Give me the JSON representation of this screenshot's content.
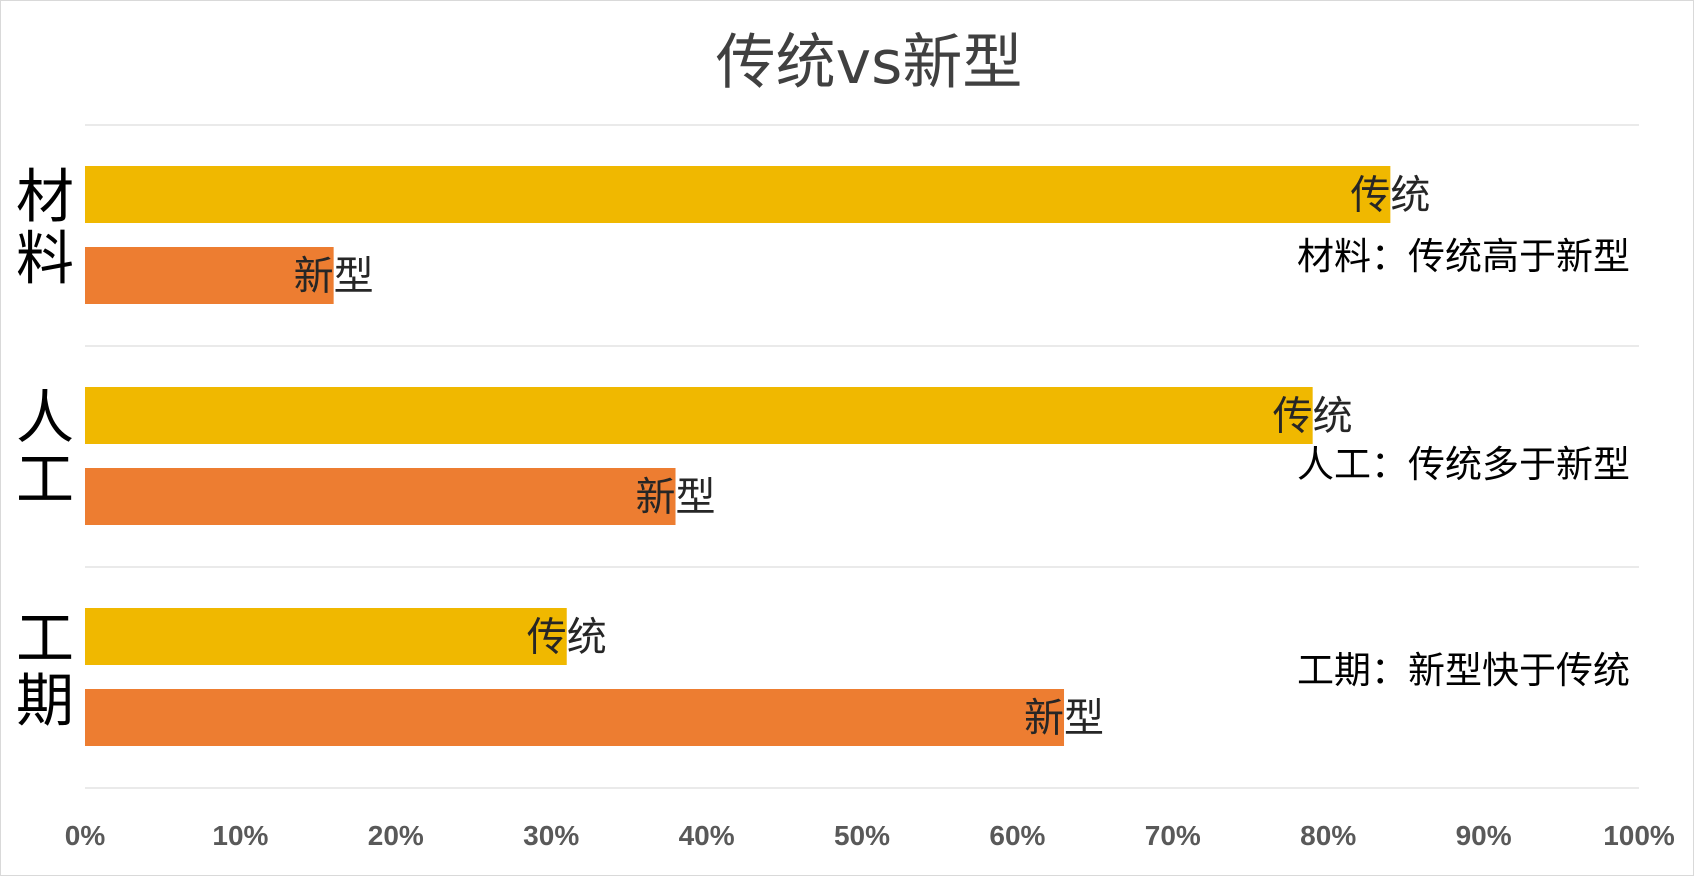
{
  "chart_data": {
    "type": "bar",
    "orientation": "horizontal",
    "title": "传统vs新型",
    "categories": [
      "材料",
      "人工",
      "工期"
    ],
    "series": [
      {
        "name": "传统",
        "values": [
          84,
          79,
          31
        ],
        "color": "#f0b800"
      },
      {
        "name": "新型",
        "values": [
          16,
          38,
          63
        ],
        "color": "#ed7d31"
      }
    ],
    "xlim": [
      0,
      100
    ],
    "x_ticks": [
      "0%",
      "10%",
      "20%",
      "30%",
      "40%",
      "50%",
      "60%",
      "70%",
      "80%",
      "90%",
      "100%"
    ],
    "grid": true,
    "legend": "none",
    "annotations": [
      "材料：传统高于新型",
      "人工：传统多于新型",
      "工期：新型快于传统"
    ]
  }
}
